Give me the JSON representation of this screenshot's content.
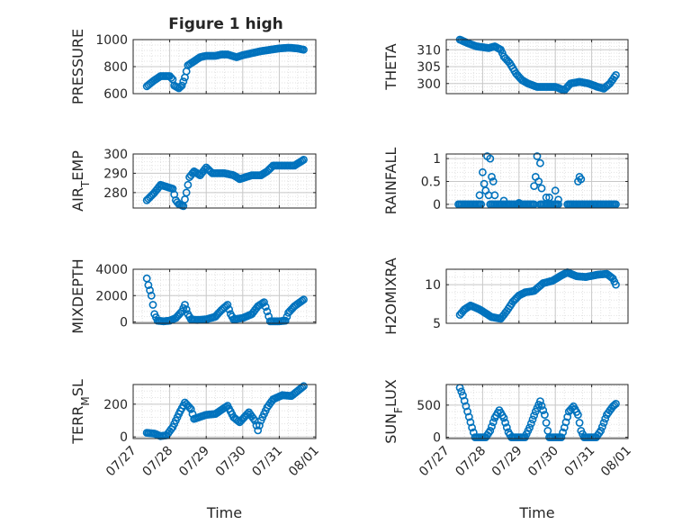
{
  "figure": {
    "title": "Figure 1 high"
  },
  "colors": {
    "marker": "#0072BD",
    "axis": "#262626",
    "grid": "#c8c8c8",
    "grid_minor": "#e2e2e2"
  },
  "chart_data": [
    {
      "type": "scatter",
      "name": "pressure",
      "ylabel": "PRESSURE",
      "ylim": [
        600,
        1000
      ],
      "yticks": [
        600,
        800,
        1000
      ],
      "ytick_labels": [
        "600",
        "800",
        "1000"
      ],
      "xlim": [
        "07/27",
        "08/01"
      ],
      "xticks": [
        "07/27",
        "07/28",
        "07/29",
        "07/30",
        "07/31",
        "08/01"
      ],
      "xtick_labels_shown": false,
      "grid": true,
      "minor_grid": true,
      "marker": "circle-open",
      "anchors": [
        [
          "07/27 09:00",
          655
        ],
        [
          "07/27 14:00",
          700
        ],
        [
          "07/27 18:00",
          730
        ],
        [
          "07/28 00:00",
          730
        ],
        [
          "07/28 02:00",
          705
        ],
        [
          "07/28 03:00",
          660
        ],
        [
          "07/28 06:00",
          640
        ],
        [
          "07/28 08:00",
          660
        ],
        [
          "07/28 10:00",
          720
        ],
        [
          "07/28 12:00",
          810
        ],
        [
          "07/28 16:00",
          840
        ],
        [
          "07/28 20:00",
          870
        ],
        [
          "07/29 00:00",
          880
        ],
        [
          "07/29 06:00",
          880
        ],
        [
          "07/29 10:00",
          890
        ],
        [
          "07/29 14:00",
          890
        ],
        [
          "07/29 20:00",
          870
        ],
        [
          "07/30 00:00",
          885
        ],
        [
          "07/30 06:00",
          900
        ],
        [
          "07/30 12:00",
          915
        ],
        [
          "07/30 18:00",
          925
        ],
        [
          "07/31 00:00",
          935
        ],
        [
          "07/31 06:00",
          940
        ],
        [
          "07/31 12:00",
          935
        ],
        [
          "07/31 16:00",
          925
        ]
      ]
    },
    {
      "type": "scatter",
      "name": "theta",
      "ylabel": "THETA",
      "ylim": [
        297,
        313
      ],
      "yticks": [
        300,
        305,
        310
      ],
      "ytick_labels": [
        "300",
        "305",
        "310"
      ],
      "xlim": [
        "07/27",
        "08/01"
      ],
      "xticks": [
        "07/27",
        "07/28",
        "07/29",
        "07/30",
        "07/31",
        "08/01"
      ],
      "xtick_labels_shown": false,
      "grid": true,
      "minor_grid": true,
      "marker": "circle-open",
      "anchors": [
        [
          "07/27 09:00",
          313
        ],
        [
          "07/27 14:00",
          312
        ],
        [
          "07/27 20:00",
          311
        ],
        [
          "07/28 04:00",
          310.5
        ],
        [
          "07/28 08:00",
          311
        ],
        [
          "07/28 12:00",
          310
        ],
        [
          "07/28 14:00",
          308
        ],
        [
          "07/28 18:00",
          306
        ],
        [
          "07/28 22:00",
          303
        ],
        [
          "07/29 02:00",
          301
        ],
        [
          "07/29 06:00",
          300
        ],
        [
          "07/29 12:00",
          299
        ],
        [
          "07/29 18:00",
          299
        ],
        [
          "07/30 00:00",
          299
        ],
        [
          "07/30 06:00",
          298
        ],
        [
          "07/30 10:00",
          300
        ],
        [
          "07/30 16:00",
          300.5
        ],
        [
          "07/30 22:00",
          300
        ],
        [
          "07/31 04:00",
          299
        ],
        [
          "07/31 08:00",
          298.5
        ],
        [
          "07/31 12:00",
          300
        ],
        [
          "07/31 16:00",
          302.5
        ]
      ]
    },
    {
      "type": "scatter",
      "name": "air_temp",
      "ylabel": "AIR_TEMP",
      "ylabel_parts": [
        "AIR",
        "T",
        "EMP"
      ],
      "ylim": [
        272,
        300
      ],
      "yticks": [
        280,
        290,
        300
      ],
      "ytick_labels": [
        "280",
        "290",
        "300"
      ],
      "xlim": [
        "07/27",
        "08/01"
      ],
      "xticks": [
        "07/27",
        "07/28",
        "07/29",
        "07/30",
        "07/31",
        "08/01"
      ],
      "xtick_labels_shown": false,
      "grid": true,
      "minor_grid": true,
      "marker": "circle-open",
      "anchors": [
        [
          "07/27 09:00",
          276
        ],
        [
          "07/27 14:00",
          280
        ],
        [
          "07/27 18:00",
          284
        ],
        [
          "07/27 22:00",
          283
        ],
        [
          "07/28 02:00",
          282
        ],
        [
          "07/28 04:00",
          276
        ],
        [
          "07/28 06:00",
          274
        ],
        [
          "07/28 09:00",
          273
        ],
        [
          "07/28 11:00",
          280
        ],
        [
          "07/28 13:00",
          288
        ],
        [
          "07/28 16:00",
          291
        ],
        [
          "07/28 20:00",
          289
        ],
        [
          "07/29 00:00",
          293
        ],
        [
          "07/29 04:00",
          290
        ],
        [
          "07/29 12:00",
          290
        ],
        [
          "07/29 18:00",
          289
        ],
        [
          "07/29 22:00",
          287
        ],
        [
          "07/30 06:00",
          289
        ],
        [
          "07/30 12:00",
          289
        ],
        [
          "07/30 16:00",
          291
        ],
        [
          "07/30 20:00",
          294
        ],
        [
          "07/31 04:00",
          294
        ],
        [
          "07/31 10:00",
          294
        ],
        [
          "07/31 14:00",
          296
        ],
        [
          "07/31 16:00",
          297
        ]
      ]
    },
    {
      "type": "scatter",
      "name": "rainfall",
      "ylabel": "RAINFALL",
      "ylim": [
        -0.08,
        1.1
      ],
      "yticks": [
        0,
        0.5,
        1
      ],
      "ytick_labels": [
        "0",
        "0.5",
        "1"
      ],
      "xlim": [
        "07/27",
        "08/01"
      ],
      "xticks": [
        "07/27",
        "07/28",
        "07/29",
        "07/30",
        "07/31",
        "08/01"
      ],
      "xtick_labels_shown": false,
      "grid": true,
      "minor_grid": true,
      "marker": "circle-open",
      "baseline_ranges": [
        [
          "07/27 08:00",
          "07/27 23:00"
        ],
        [
          "07/28 05:00",
          "07/29 10:00"
        ],
        [
          "07/29 14:00",
          "07/30 02:00"
        ],
        [
          "07/30 08:00",
          "07/31 16:00"
        ]
      ],
      "points": [
        [
          "07/27 22:00",
          0.2
        ],
        [
          "07/28 00:00",
          0.7
        ],
        [
          "07/28 01:00",
          0.45
        ],
        [
          "07/28 02:00",
          0.3
        ],
        [
          "07/28 03:00",
          1.05
        ],
        [
          "07/28 04:00",
          0.2
        ],
        [
          "07/28 05:00",
          1.0
        ],
        [
          "07/28 06:00",
          0.6
        ],
        [
          "07/28 07:00",
          0.5
        ],
        [
          "07/28 08:00",
          0.2
        ],
        [
          "07/28 14:00",
          0.08
        ],
        [
          "07/29 00:00",
          0.03
        ],
        [
          "07/29 10:00",
          0.4
        ],
        [
          "07/29 11:00",
          0.6
        ],
        [
          "07/29 12:00",
          1.05
        ],
        [
          "07/29 13:00",
          0.5
        ],
        [
          "07/29 14:00",
          0.9
        ],
        [
          "07/29 15:00",
          0.35
        ],
        [
          "07/29 18:00",
          0.15
        ],
        [
          "07/29 20:00",
          0.15
        ],
        [
          "07/30 00:00",
          0.3
        ],
        [
          "07/30 02:00",
          0.1
        ],
        [
          "07/30 15:00",
          0.5
        ],
        [
          "07/30 16:00",
          0.6
        ],
        [
          "07/30 17:00",
          0.55
        ]
      ]
    },
    {
      "type": "scatter",
      "name": "mixdepth",
      "ylabel": "MIXDEPTH",
      "ylim": [
        -100,
        4000
      ],
      "yticks": [
        0,
        2000,
        4000
      ],
      "ytick_labels": [
        "0",
        "2000",
        "4000"
      ],
      "xlim": [
        "07/27",
        "08/01"
      ],
      "xticks": [
        "07/27",
        "07/28",
        "07/29",
        "07/30",
        "07/31",
        "08/01"
      ],
      "xtick_labels_shown": false,
      "grid": true,
      "minor_grid": true,
      "marker": "circle-open",
      "anchors": [
        [
          "07/27 09:00",
          3300
        ],
        [
          "07/27 10:00",
          2800
        ],
        [
          "07/27 12:00",
          2000
        ],
        [
          "07/27 14:00",
          600
        ],
        [
          "07/27 16:00",
          100
        ],
        [
          "07/27 20:00",
          50
        ],
        [
          "07/28 00:00",
          100
        ],
        [
          "07/28 04:00",
          300
        ],
        [
          "07/28 08:00",
          800
        ],
        [
          "07/28 10:00",
          1300
        ],
        [
          "07/28 12:00",
          600
        ],
        [
          "07/28 14:00",
          200
        ],
        [
          "07/28 18:00",
          150
        ],
        [
          "07/29 00:00",
          200
        ],
        [
          "07/29 06:00",
          400
        ],
        [
          "07/29 10:00",
          900
        ],
        [
          "07/29 14:00",
          1300
        ],
        [
          "07/29 16:00",
          600
        ],
        [
          "07/29 18:00",
          200
        ],
        [
          "07/30 00:00",
          300
        ],
        [
          "07/30 06:00",
          600
        ],
        [
          "07/30 10:00",
          1200
        ],
        [
          "07/30 14:00",
          1500
        ],
        [
          "07/30 16:00",
          800
        ],
        [
          "07/30 18:00",
          50
        ],
        [
          "07/31 00:00",
          50
        ],
        [
          "07/31 04:00",
          100
        ],
        [
          "07/31 06:00",
          700
        ],
        [
          "07/31 10:00",
          1200
        ],
        [
          "07/31 16:00",
          1700
        ]
      ]
    },
    {
      "type": "scatter",
      "name": "h2omixra",
      "ylabel": "H2OMIXRA",
      "ylim": [
        5,
        12
      ],
      "yticks": [
        5,
        10
      ],
      "ytick_labels": [
        "5",
        "10"
      ],
      "xlim": [
        "07/27",
        "08/01"
      ],
      "xticks": [
        "07/27",
        "07/28",
        "07/29",
        "07/30",
        "07/31",
        "08/01"
      ],
      "xtick_labels_shown": false,
      "grid": true,
      "minor_grid": true,
      "marker": "circle-open",
      "anchors": [
        [
          "07/27 09:00",
          6.1
        ],
        [
          "07/27 12:00",
          6.8
        ],
        [
          "07/27 16:00",
          7.3
        ],
        [
          "07/27 22:00",
          6.8
        ],
        [
          "07/28 02:00",
          6.3
        ],
        [
          "07/28 06:00",
          5.8
        ],
        [
          "07/28 12:00",
          5.6
        ],
        [
          "07/28 16:00",
          6.6
        ],
        [
          "07/28 20:00",
          7.8
        ],
        [
          "07/29 00:00",
          8.6
        ],
        [
          "07/29 04:00",
          9.0
        ],
        [
          "07/29 10:00",
          9.2
        ],
        [
          "07/29 16:00",
          10.2
        ],
        [
          "07/29 22:00",
          10.5
        ],
        [
          "07/30 04:00",
          11.2
        ],
        [
          "07/30 08:00",
          11.6
        ],
        [
          "07/30 14:00",
          11.1
        ],
        [
          "07/30 20:00",
          11.0
        ],
        [
          "07/31 04:00",
          11.3
        ],
        [
          "07/31 10:00",
          11.4
        ],
        [
          "07/31 14:00",
          10.8
        ],
        [
          "07/31 16:00",
          10.0
        ]
      ]
    },
    {
      "type": "scatter",
      "name": "terr_msl",
      "ylabel": "TERR_MSL",
      "ylabel_parts": [
        "TERR",
        "M",
        "SL"
      ],
      "ylim": [
        -10,
        320
      ],
      "yticks": [
        0,
        200
      ],
      "ytick_labels": [
        "0",
        "200"
      ],
      "xlim": [
        "07/27",
        "08/01"
      ],
      "xticks": [
        "07/27",
        "07/28",
        "07/29",
        "07/30",
        "07/31",
        "08/01"
      ],
      "xtick_labels_shown": true,
      "grid": true,
      "minor_grid": true,
      "marker": "circle-open",
      "anchors": [
        [
          "07/27 09:00",
          25
        ],
        [
          "07/27 14:00",
          20
        ],
        [
          "07/27 18:00",
          5
        ],
        [
          "07/27 22:00",
          10
        ],
        [
          "07/28 02:00",
          60
        ],
        [
          "07/28 06:00",
          140
        ],
        [
          "07/28 10:00",
          210
        ],
        [
          "07/28 14:00",
          170
        ],
        [
          "07/28 16:00",
          110
        ],
        [
          "07/29 00:00",
          135
        ],
        [
          "07/29 06:00",
          140
        ],
        [
          "07/29 10:00",
          165
        ],
        [
          "07/29 14:00",
          190
        ],
        [
          "07/29 18:00",
          120
        ],
        [
          "07/29 22:00",
          90
        ],
        [
          "07/30 04:00",
          150
        ],
        [
          "07/30 08:00",
          100
        ],
        [
          "07/30 10:00",
          40
        ],
        [
          "07/30 12:00",
          100
        ],
        [
          "07/30 16:00",
          180
        ],
        [
          "07/30 20:00",
          230
        ],
        [
          "07/31 02:00",
          255
        ],
        [
          "07/31 08:00",
          250
        ],
        [
          "07/31 12:00",
          280
        ],
        [
          "07/31 16:00",
          310
        ]
      ]
    },
    {
      "type": "scatter",
      "name": "sun_flux",
      "ylabel": "SUN_FLUX",
      "ylabel_parts": [
        "SUN",
        "F",
        "LUX"
      ],
      "ylim": [
        -20,
        820
      ],
      "yticks": [
        0,
        500
      ],
      "ytick_labels": [
        "0",
        "500"
      ],
      "xlim": [
        "07/27",
        "08/01"
      ],
      "xticks": [
        "07/27",
        "07/28",
        "07/29",
        "07/30",
        "07/31",
        "08/01"
      ],
      "xtick_labels_shown": true,
      "grid": true,
      "minor_grid": true,
      "marker": "circle-open",
      "anchors": [
        [
          "07/27 09:00",
          770
        ],
        [
          "07/27 11:00",
          650
        ],
        [
          "07/27 14:00",
          400
        ],
        [
          "07/27 17:00",
          150
        ],
        [
          "07/27 19:00",
          0
        ],
        [
          "07/28 02:00",
          0
        ],
        [
          "07/28 05:00",
          100
        ],
        [
          "07/28 08:00",
          300
        ],
        [
          "07/28 11:00",
          420
        ],
        [
          "07/28 14:00",
          300
        ],
        [
          "07/28 17:00",
          80
        ],
        [
          "07/28 19:00",
          0
        ],
        [
          "07/29 04:00",
          0
        ],
        [
          "07/29 07:00",
          150
        ],
        [
          "07/29 11:00",
          400
        ],
        [
          "07/29 14:00",
          560
        ],
        [
          "07/29 17:00",
          350
        ],
        [
          "07/29 19:00",
          100
        ],
        [
          "07/29 20:00",
          0
        ],
        [
          "07/30 04:00",
          0
        ],
        [
          "07/30 06:00",
          150
        ],
        [
          "07/30 09:00",
          400
        ],
        [
          "07/30 12:00",
          480
        ],
        [
          "07/30 15:00",
          350
        ],
        [
          "07/30 17:00",
          100
        ],
        [
          "07/30 19:00",
          0
        ],
        [
          "07/31 03:00",
          0
        ],
        [
          "07/31 06:00",
          100
        ],
        [
          "07/31 10:00",
          350
        ],
        [
          "07/31 14:00",
          480
        ],
        [
          "07/31 16:00",
          520
        ]
      ]
    }
  ],
  "shared_xlabel": "Time"
}
